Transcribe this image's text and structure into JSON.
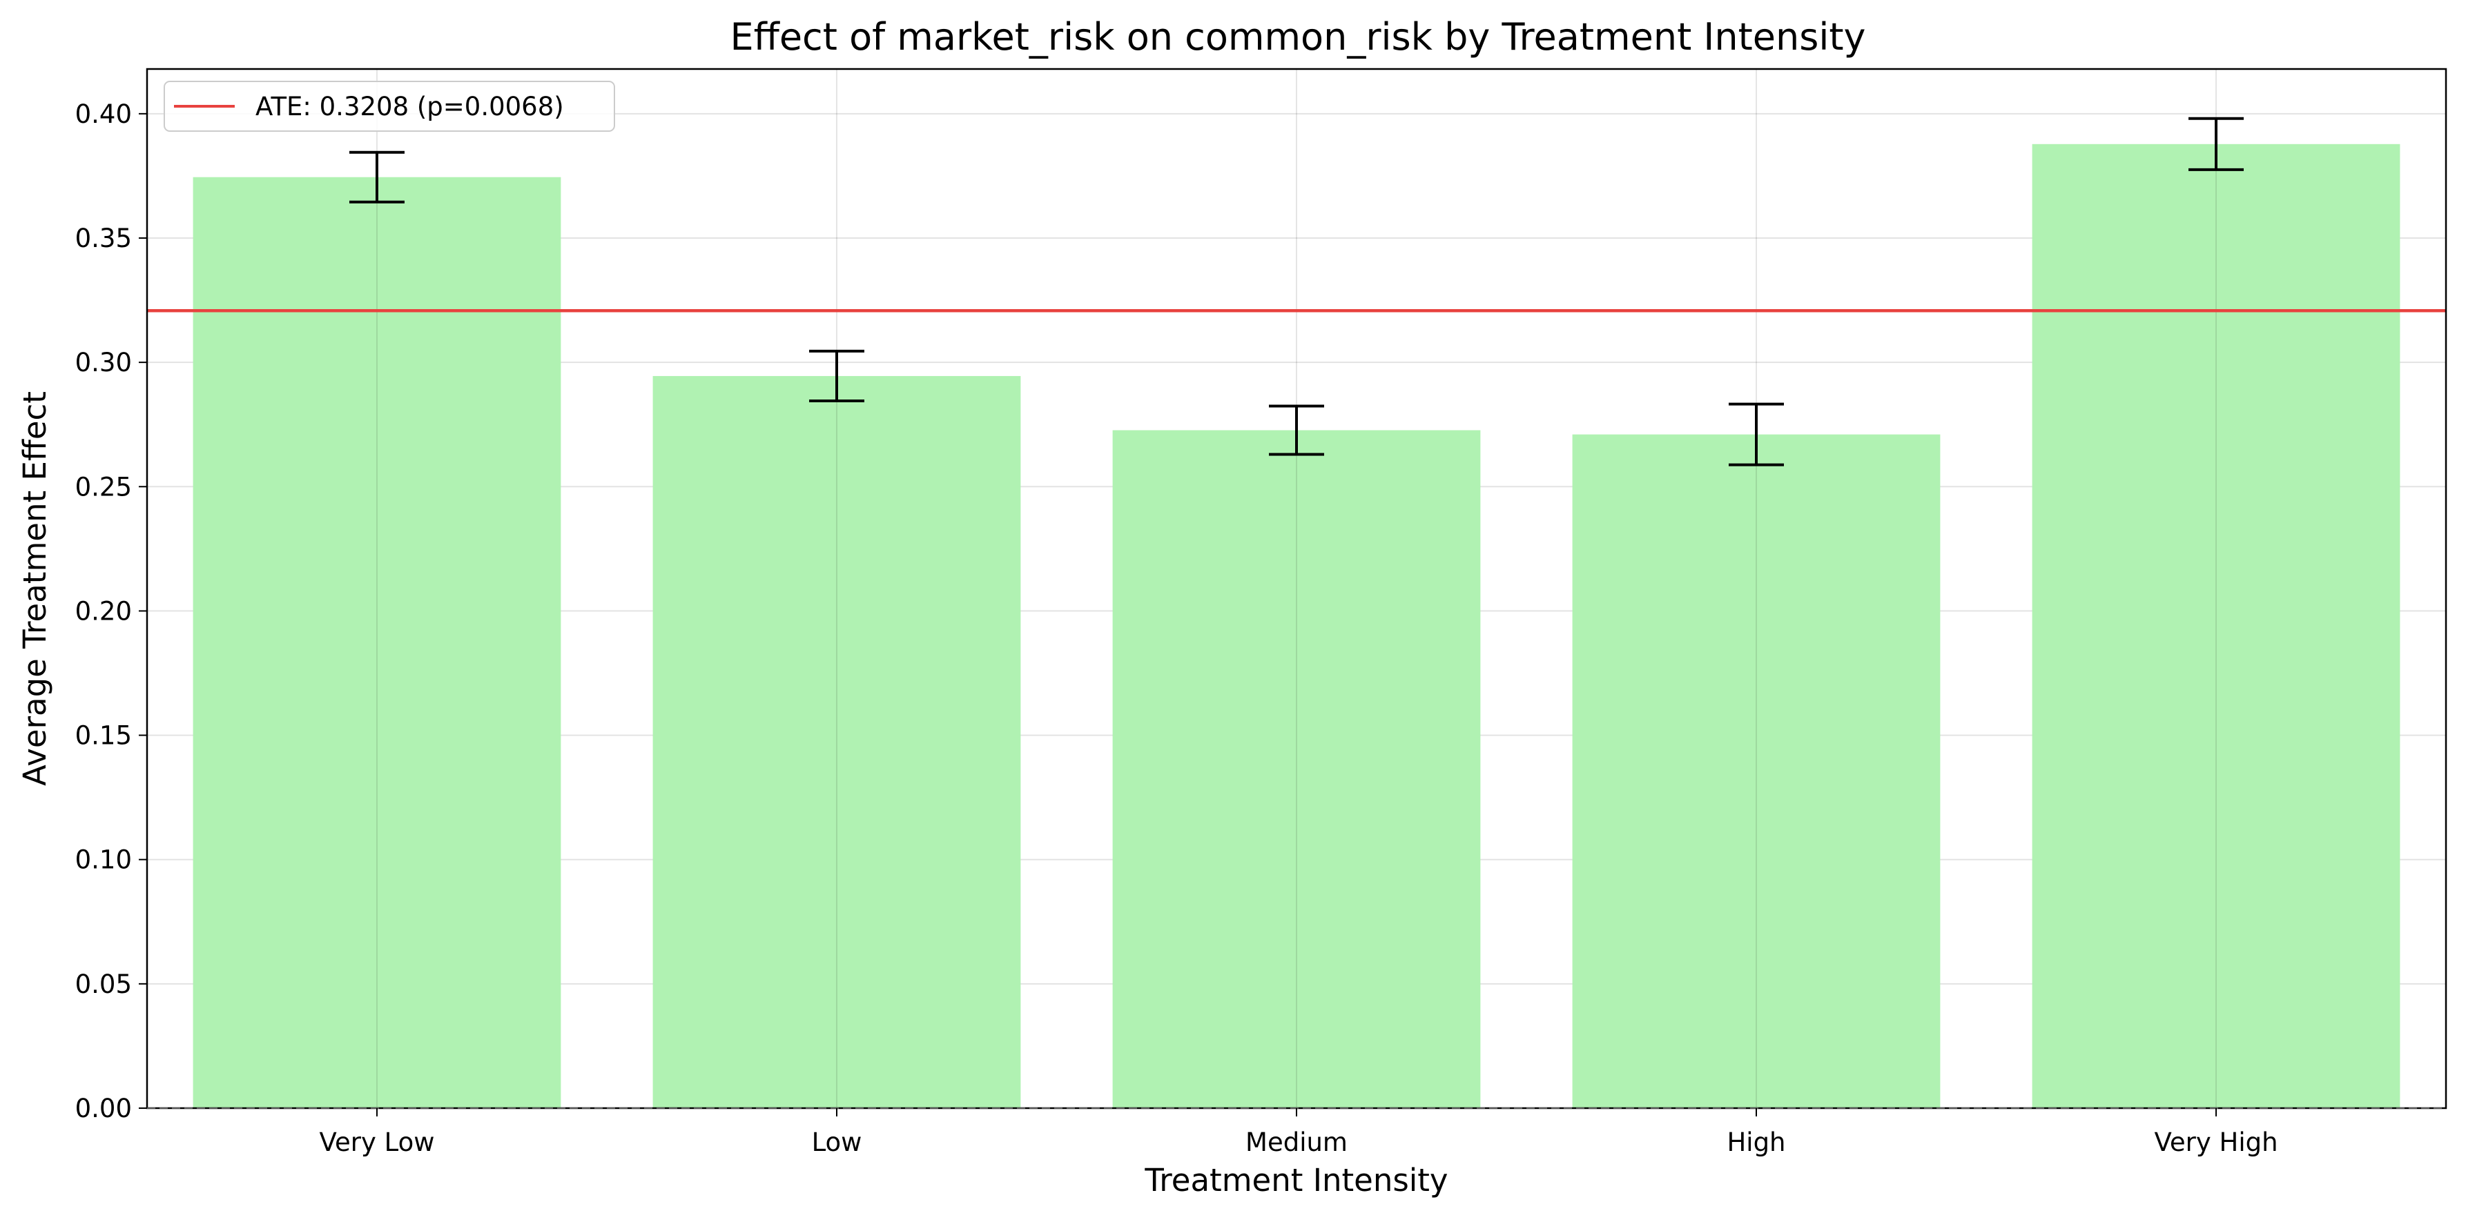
{
  "chart_data": {
    "type": "bar",
    "title": "Effect of market_risk on common_risk by Treatment Intensity",
    "xlabel": "Treatment Intensity",
    "ylabel": "Average Treatment Effect",
    "categories": [
      "Very Low",
      "Low",
      "Medium",
      "High",
      "Very High"
    ],
    "values": [
      0.3745,
      0.2945,
      0.2727,
      0.271,
      0.3878
    ],
    "errors": [
      0.01,
      0.01,
      0.0097,
      0.0122,
      0.0103
    ],
    "ylim": [
      0,
      0.418
    ],
    "yticks": [
      0.0,
      0.05,
      0.1,
      0.15,
      0.2,
      0.25,
      0.3,
      0.35,
      0.4
    ],
    "ytick_labels": [
      "0.00",
      "0.05",
      "0.10",
      "0.15",
      "0.20",
      "0.25",
      "0.30",
      "0.35",
      "0.40"
    ],
    "reference_line": {
      "value": 0.3208,
      "label": "ATE: 0.3208 (p=0.0068)",
      "color": "#e8423f"
    },
    "bar_color": "#b0f2b2",
    "grid": true,
    "legend_position": "top-left"
  }
}
